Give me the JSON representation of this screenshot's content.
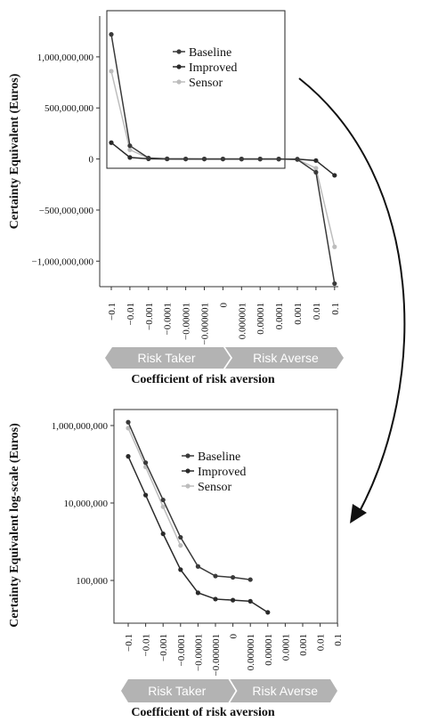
{
  "colors": {
    "baseline": "#3a3a3a",
    "improved": "#2a2a2a",
    "sensor": "#bdbdbd",
    "band": "#b3b3b3"
  },
  "chart_data": [
    {
      "type": "line",
      "ylabel": "Certainty Equivalent (Euros)",
      "xlabel": "Coefficient of risk aversion",
      "categories": [
        "-0.1",
        "-0.01",
        "-0.001",
        "-0.0001",
        "-0.00001",
        "-0.000001",
        "0",
        "0.000001",
        "0.00001",
        "0.0001",
        "0.001",
        "0.01",
        "0.1"
      ],
      "yticks": [
        1000000000,
        500000000,
        0,
        -500000000,
        -1000000000
      ],
      "ytick_labels": [
        "1,000,000,000",
        "500,000,000",
        "0",
        "-500,000,000",
        "-1,000,000,000"
      ],
      "ylim": [
        -1250000000,
        1400000000
      ],
      "legend": [
        "Baseline",
        "Improved",
        "Sensor"
      ],
      "legend_position": "top-right",
      "zone_labels": [
        "Risk Taker",
        "Risk Averse"
      ],
      "series": [
        {
          "name": "Baseline",
          "values": [
            1220000000,
            130000000,
            10000000,
            2000000,
            500000,
            200000,
            200000,
            100000,
            50000,
            20000,
            -5000000,
            -130000000,
            -1220000000
          ]
        },
        {
          "name": "Improved",
          "values": [
            160000000,
            15000000,
            1500000,
            300000,
            100000,
            50000,
            50000,
            30000,
            10000,
            5000,
            -1000000,
            -15000000,
            -160000000
          ]
        },
        {
          "name": "Sensor",
          "values": [
            860000000,
            90000000,
            8000000,
            1000000,
            300000,
            100000,
            100000,
            60000,
            20000,
            10000,
            -4000000,
            -90000000,
            -860000000
          ]
        }
      ]
    },
    {
      "type": "line",
      "ylabel": "Certainty Equivalent log-scale (Euros)",
      "xlabel": "Coefficient of risk aversion",
      "yscale": "log",
      "categories": [
        "-0.1",
        "-0.01",
        "-0.001",
        "-0.0001",
        "-0.00001",
        "-0.000001",
        "0",
        "0.000001",
        "0.00001",
        "0.0001",
        "0.001",
        "0.01",
        "0.1"
      ],
      "yticks": [
        1000000000,
        10000000,
        100000
      ],
      "ytick_labels": [
        "1,000,000,000",
        "10,000,000",
        "100,000"
      ],
      "ylim": [
        10000,
        3000000000
      ],
      "legend": [
        "Baseline",
        "Improved",
        "Sensor"
      ],
      "legend_position": "top-right",
      "zone_labels": [
        "Risk Taker",
        "Risk Averse"
      ],
      "series": [
        {
          "name": "Baseline",
          "values": [
            1220000000,
            110000000,
            12000000,
            1300000,
            230000,
            130000,
            120000,
            105000,
            null,
            null,
            null,
            null,
            null
          ]
        },
        {
          "name": "Improved",
          "values": [
            160000000,
            16000000,
            1600000,
            190000,
            48000,
            33000,
            31000,
            29000,
            15000,
            null,
            null,
            null,
            null
          ]
        },
        {
          "name": "Sensor",
          "values": [
            860000000,
            85000000,
            8000000,
            800000,
            null,
            null,
            null,
            null,
            null,
            null,
            null,
            null,
            null
          ]
        }
      ]
    }
  ]
}
